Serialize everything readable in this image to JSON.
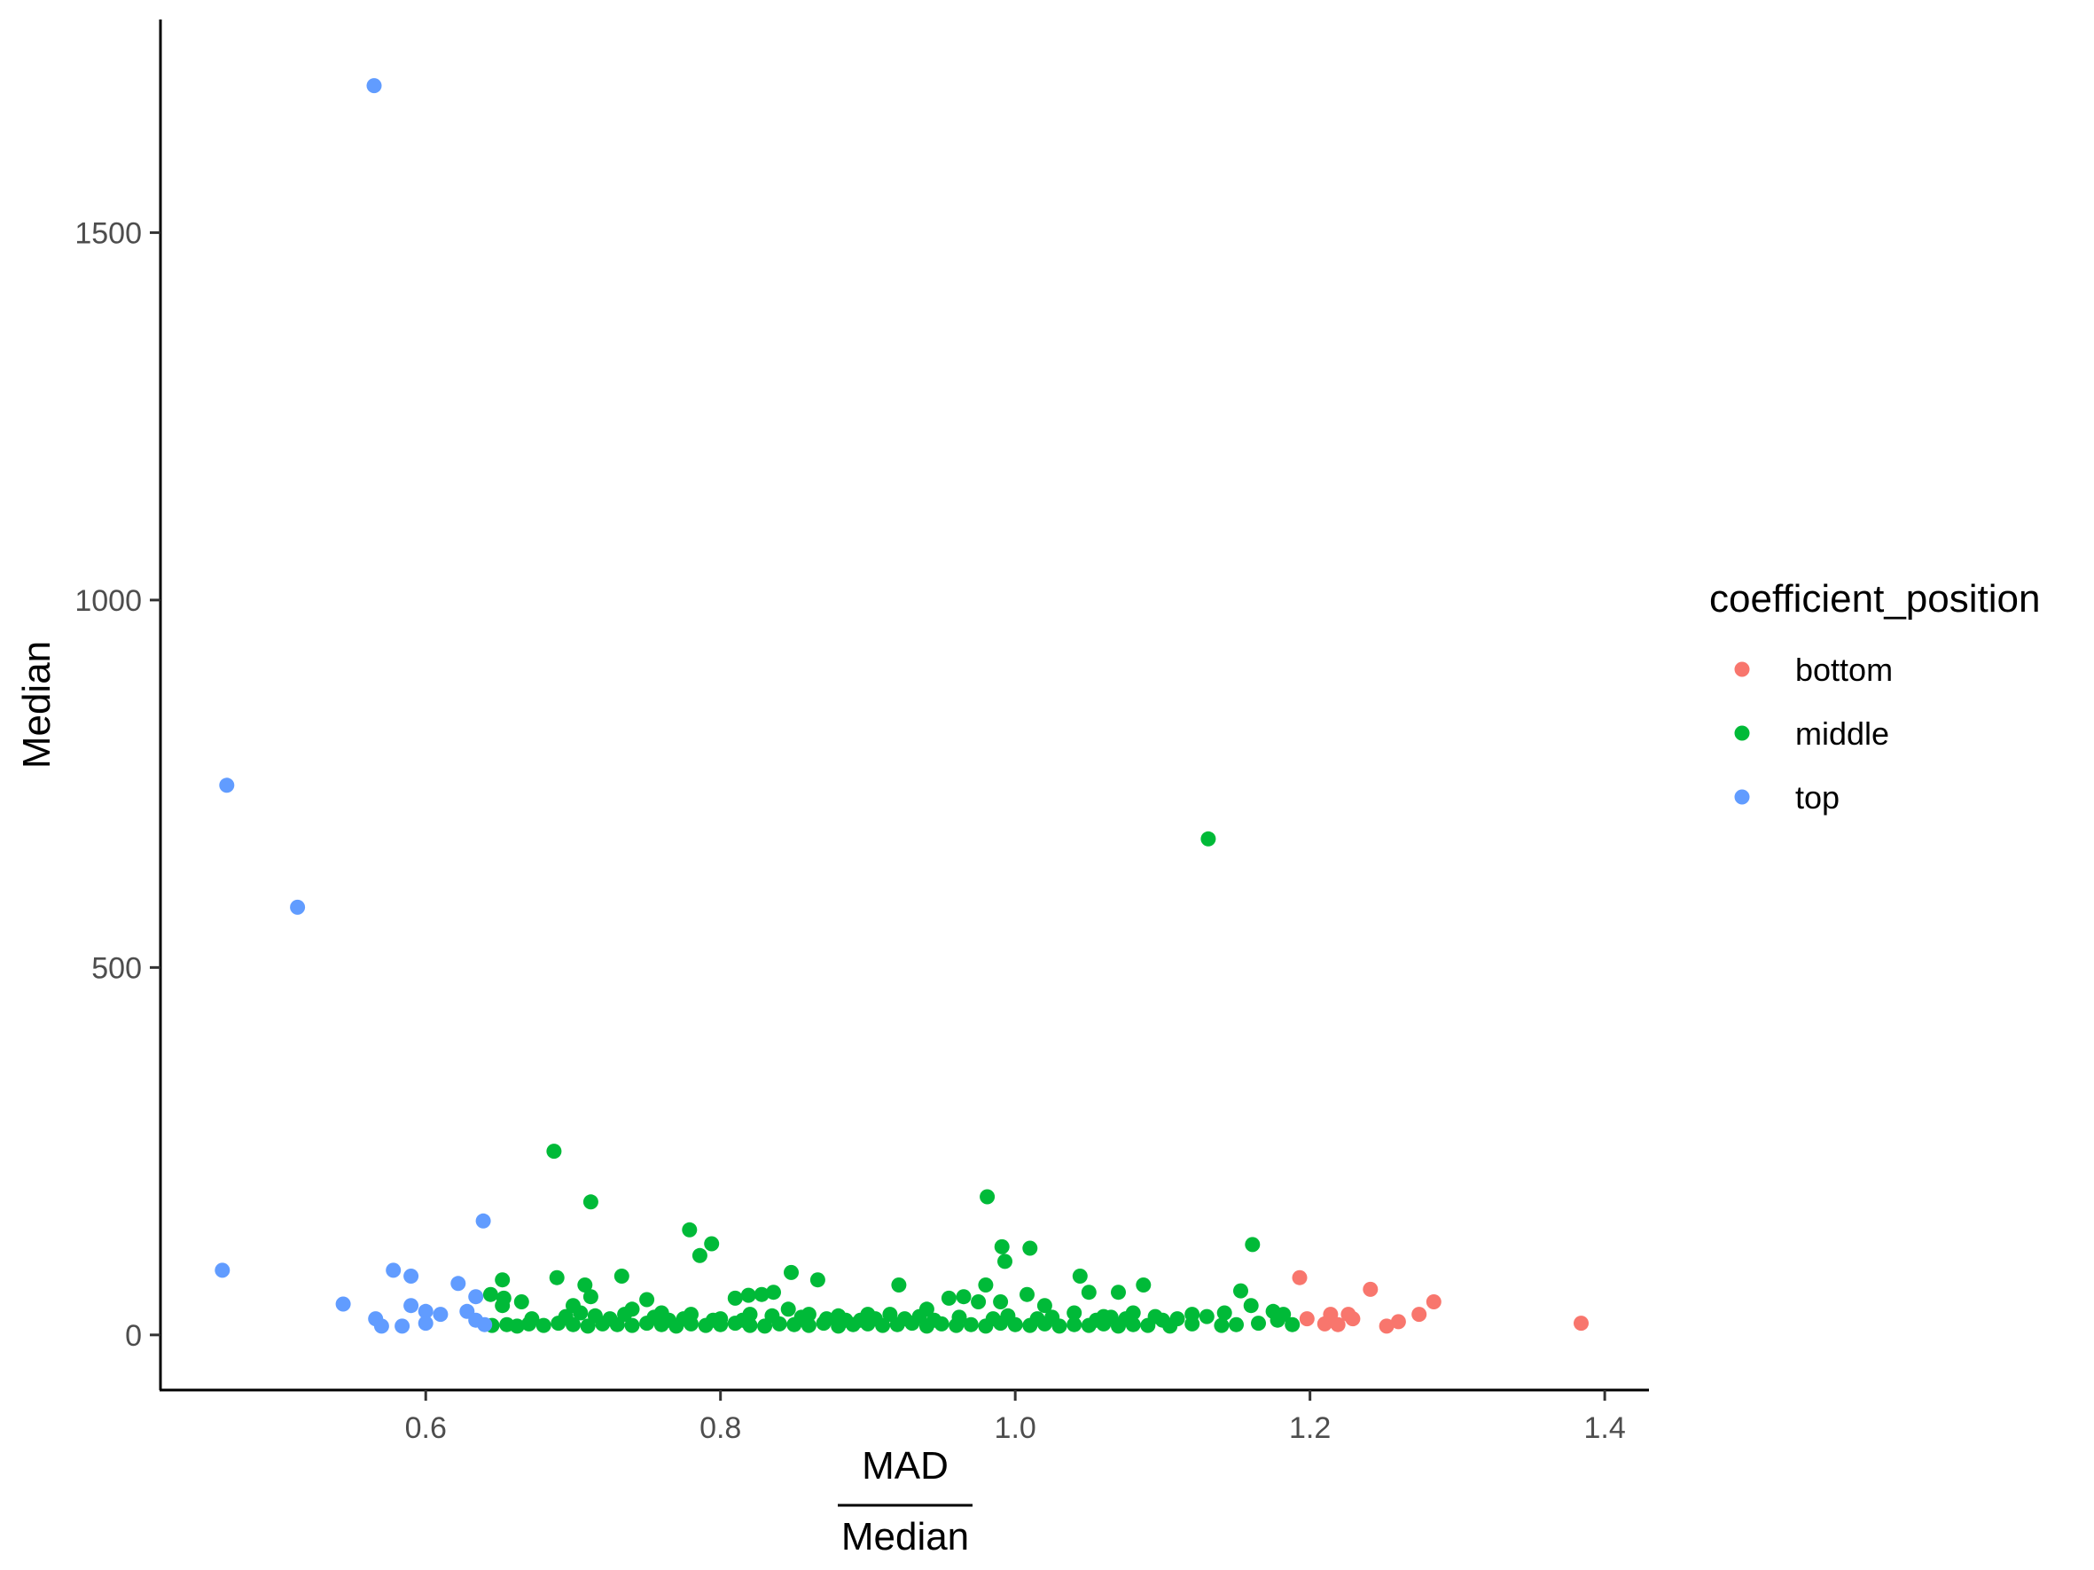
{
  "chart_data": {
    "type": "scatter",
    "title": "",
    "xlabel_numerator": "MAD",
    "xlabel_denominator": "Median",
    "ylabel": "Median",
    "xlim": [
      0.42,
      1.43
    ],
    "ylim": [
      -75,
      1790
    ],
    "x_ticks": [
      0.6,
      0.8,
      1.0,
      1.2,
      1.4
    ],
    "x_tick_labels": [
      "0.6",
      "0.8",
      "1.0",
      "1.2",
      "1.4"
    ],
    "y_ticks": [
      0,
      500,
      1000,
      1500
    ],
    "y_tick_labels": [
      "0",
      "500",
      "1000",
      "1500"
    ],
    "grid": false,
    "legend": {
      "title": "coefficient_position",
      "placement": "right",
      "entries": [
        {
          "label": "bottom",
          "color": "#F8766D"
        },
        {
          "label": "middle",
          "color": "#00BA38"
        },
        {
          "label": "top",
          "color": "#619CFF"
        }
      ]
    },
    "series": [
      {
        "name": "bottom",
        "color": "#F8766D",
        "points": [
          [
            1.193,
            78
          ],
          [
            1.198,
            22
          ],
          [
            1.21,
            15
          ],
          [
            1.214,
            28
          ],
          [
            1.219,
            14
          ],
          [
            1.226,
            28
          ],
          [
            1.229,
            22
          ],
          [
            1.241,
            62
          ],
          [
            1.252,
            12
          ],
          [
            1.26,
            18
          ],
          [
            1.274,
            28
          ],
          [
            1.284,
            45
          ],
          [
            1.384,
            16
          ]
        ]
      },
      {
        "name": "middle",
        "color": "#00BA38",
        "points": [
          [
            1.131,
            675
          ],
          [
            0.687,
            250
          ],
          [
            0.712,
            181
          ],
          [
            0.981,
            188
          ],
          [
            0.779,
            143
          ],
          [
            0.786,
            108
          ],
          [
            0.794,
            124
          ],
          [
            0.991,
            120
          ],
          [
            0.993,
            100
          ],
          [
            1.01,
            118
          ],
          [
            1.161,
            123
          ],
          [
            0.733,
            80
          ],
          [
            0.689,
            78
          ],
          [
            0.652,
            75
          ],
          [
            0.848,
            85
          ],
          [
            0.866,
            75
          ],
          [
            1.044,
            80
          ],
          [
            0.921,
            68
          ],
          [
            0.98,
            68
          ],
          [
            1.087,
            68
          ],
          [
            1.07,
            58
          ],
          [
            1.05,
            58
          ],
          [
            1.153,
            60
          ],
          [
            0.836,
            58
          ],
          [
            0.828,
            55
          ],
          [
            0.819,
            54
          ],
          [
            0.81,
            50
          ],
          [
            0.644,
            55
          ],
          [
            0.653,
            50
          ],
          [
            0.652,
            40
          ],
          [
            0.665,
            45
          ],
          [
            0.708,
            68
          ],
          [
            0.712,
            52
          ],
          [
            0.75,
            48
          ],
          [
            0.7,
            40
          ],
          [
            0.74,
            35
          ],
          [
            0.76,
            30
          ],
          [
            0.78,
            28
          ],
          [
            0.8,
            22
          ],
          [
            0.82,
            28
          ],
          [
            0.846,
            35
          ],
          [
            0.86,
            28
          ],
          [
            0.88,
            26
          ],
          [
            0.9,
            28
          ],
          [
            0.94,
            35
          ],
          [
            0.955,
            50
          ],
          [
            0.965,
            52
          ],
          [
            0.975,
            45
          ],
          [
            0.99,
            45
          ],
          [
            1.008,
            55
          ],
          [
            1.02,
            40
          ],
          [
            1.04,
            30
          ],
          [
            1.06,
            25
          ],
          [
            1.08,
            30
          ],
          [
            1.12,
            28
          ],
          [
            1.13,
            25
          ],
          [
            1.142,
            30
          ],
          [
            1.16,
            40
          ],
          [
            1.175,
            32
          ],
          [
            1.182,
            28
          ],
          [
            0.645,
            13
          ],
          [
            0.655,
            14
          ],
          [
            0.662,
            12
          ],
          [
            0.67,
            15
          ],
          [
            0.68,
            13
          ],
          [
            0.69,
            16
          ],
          [
            0.7,
            14
          ],
          [
            0.71,
            12
          ],
          [
            0.72,
            15
          ],
          [
            0.73,
            14
          ],
          [
            0.74,
            13
          ],
          [
            0.75,
            16
          ],
          [
            0.76,
            14
          ],
          [
            0.77,
            12
          ],
          [
            0.78,
            15
          ],
          [
            0.79,
            13
          ],
          [
            0.8,
            14
          ],
          [
            0.81,
            16
          ],
          [
            0.82,
            13
          ],
          [
            0.83,
            12
          ],
          [
            0.84,
            15
          ],
          [
            0.85,
            14
          ],
          [
            0.86,
            13
          ],
          [
            0.87,
            16
          ],
          [
            0.88,
            12
          ],
          [
            0.89,
            14
          ],
          [
            0.9,
            15
          ],
          [
            0.91,
            13
          ],
          [
            0.92,
            14
          ],
          [
            0.93,
            16
          ],
          [
            0.94,
            12
          ],
          [
            0.95,
            15
          ],
          [
            0.96,
            13
          ],
          [
            0.97,
            14
          ],
          [
            0.98,
            12
          ],
          [
            0.99,
            16
          ],
          [
            1.0,
            14
          ],
          [
            1.01,
            13
          ],
          [
            1.02,
            15
          ],
          [
            1.03,
            12
          ],
          [
            1.04,
            14
          ],
          [
            1.05,
            13
          ],
          [
            1.06,
            15
          ],
          [
            1.07,
            12
          ],
          [
            1.08,
            14
          ],
          [
            1.09,
            13
          ],
          [
            1.105,
            12
          ],
          [
            1.12,
            15
          ],
          [
            1.14,
            13
          ],
          [
            1.15,
            14
          ],
          [
            1.165,
            16
          ],
          [
            1.178,
            20
          ],
          [
            1.188,
            14
          ],
          [
            0.672,
            22
          ],
          [
            0.695,
            25
          ],
          [
            0.725,
            22
          ],
          [
            0.765,
            20
          ],
          [
            0.815,
            20
          ],
          [
            0.872,
            22
          ],
          [
            0.895,
            20
          ],
          [
            0.925,
            22
          ],
          [
            0.945,
            20
          ],
          [
            0.985,
            22
          ],
          [
            1.015,
            22
          ],
          [
            1.055,
            20
          ],
          [
            1.075,
            22
          ],
          [
            1.1,
            20
          ],
          [
            1.11,
            22
          ],
          [
            0.705,
            30
          ],
          [
            0.715,
            26
          ],
          [
            0.735,
            28
          ],
          [
            0.755,
            24
          ],
          [
            0.775,
            22
          ],
          [
            0.795,
            20
          ],
          [
            0.835,
            26
          ],
          [
            0.855,
            24
          ],
          [
            0.885,
            20
          ],
          [
            0.905,
            22
          ],
          [
            0.915,
            28
          ],
          [
            0.935,
            25
          ],
          [
            0.962,
            24
          ],
          [
            0.995,
            26
          ],
          [
            1.025,
            24
          ],
          [
            1.065,
            24
          ],
          [
            1.095,
            25
          ]
        ]
      },
      {
        "name": "top",
        "color": "#619CFF",
        "points": [
          [
            0.565,
            1700
          ],
          [
            0.465,
            748
          ],
          [
            0.513,
            582
          ],
          [
            0.462,
            88
          ],
          [
            0.639,
            155
          ],
          [
            0.544,
            42
          ],
          [
            0.566,
            22
          ],
          [
            0.57,
            12
          ],
          [
            0.578,
            88
          ],
          [
            0.584,
            12
          ],
          [
            0.59,
            80
          ],
          [
            0.59,
            40
          ],
          [
            0.6,
            32
          ],
          [
            0.6,
            16
          ],
          [
            0.61,
            28
          ],
          [
            0.622,
            70
          ],
          [
            0.628,
            32
          ],
          [
            0.634,
            52
          ],
          [
            0.634,
            20
          ],
          [
            0.64,
            14
          ]
        ]
      }
    ]
  }
}
